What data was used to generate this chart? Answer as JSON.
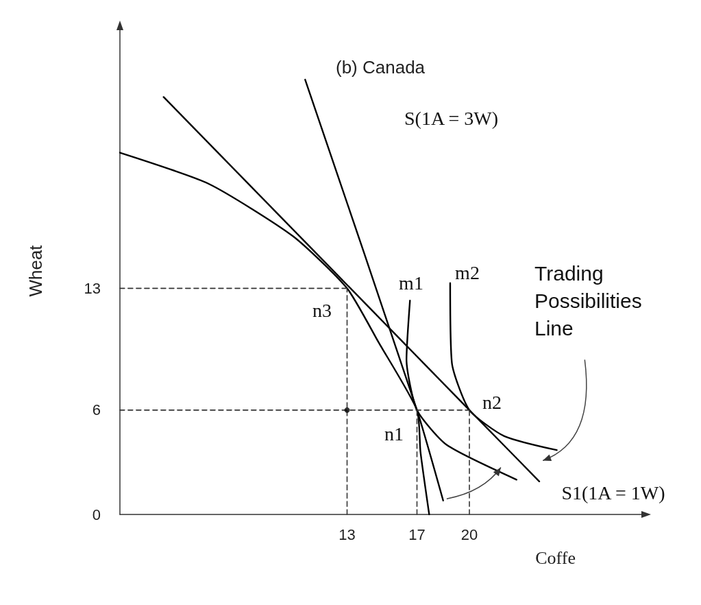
{
  "chart_data": {
    "type": "line",
    "title": "(b) Canada",
    "xlabel": "Coffe",
    "ylabel": "Wheat",
    "xlim": [
      0,
      30
    ],
    "ylim": [
      0,
      28
    ],
    "xticks": [
      13,
      17,
      20
    ],
    "yticks": [
      0,
      6,
      13
    ],
    "grid": false,
    "marker": "none",
    "series": [
      {
        "color": "#000000",
        "x": [
          0,
          5.1,
          9.9,
          13,
          14.8,
          17,
          17.2,
          17.7
        ],
        "values": [
          20.8,
          19,
          16,
          13,
          9.9,
          6,
          3.6,
          0
        ]
      },
      {
        "color": "#000000",
        "x": [
          2.5,
          20,
          24
        ],
        "values": [
          24,
          6,
          1.9
        ]
      },
      {
        "color": "#000000",
        "x": [
          10.6,
          17,
          18.5
        ],
        "values": [
          25,
          6,
          0.8
        ]
      },
      {
        "color": "#000000",
        "x": [
          16.6,
          16.4,
          17,
          18.7,
          22.7
        ],
        "values": [
          12.3,
          8.9,
          6,
          4,
          2
        ]
      },
      {
        "color": "#000000",
        "x": [
          18.9,
          19,
          20,
          22,
          25
        ],
        "values": [
          13.3,
          8.7,
          6,
          4.5,
          3.7
        ]
      },
      {
        "type": "line",
        "color": "#333333",
        "line_style": "dashed",
        "x": [
          0,
          13
        ],
        "values": [
          13,
          13
        ]
      },
      {
        "type": "line",
        "color": "#333333",
        "line_style": "dashed",
        "x": [
          0,
          20
        ],
        "values": [
          6,
          6
        ]
      },
      {
        "type": "line",
        "color": "#333333",
        "line_style": "dashed",
        "x": [
          13,
          13
        ],
        "values": [
          0,
          13
        ]
      },
      {
        "type": "line",
        "color": "#333333",
        "line_style": "dashed",
        "x": [
          17,
          17
        ],
        "values": [
          0,
          6
        ]
      },
      {
        "type": "line",
        "color": "#333333",
        "line_style": "dashed",
        "x": [
          20,
          20
        ],
        "values": [
          0,
          6
        ]
      },
      {
        "type": "scatter",
        "color": "#000000",
        "marker": "circle",
        "x": [
          13
        ],
        "values": [
          6
        ]
      }
    ],
    "annotations": [
      "S(1A = 3W)",
      "m1",
      "m2",
      "n3",
      "n1",
      "n2",
      "S1(1A = 1W)",
      "Trading Possibilities Line"
    ]
  }
}
